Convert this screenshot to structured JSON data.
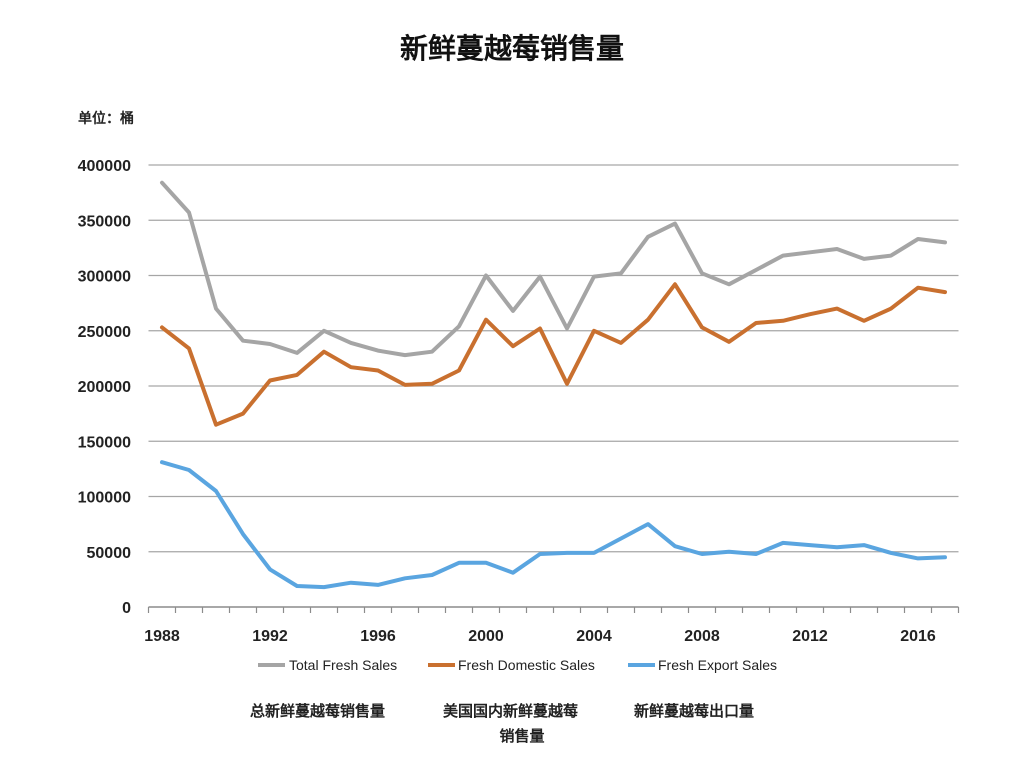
{
  "chart_data": {
    "type": "line",
    "title": "新鲜蔓越莓销售量",
    "ylabel": "单位：桶",
    "x": [
      1988,
      1989,
      1990,
      1991,
      1992,
      1993,
      1994,
      1995,
      1996,
      1997,
      1998,
      1999,
      2000,
      2001,
      2002,
      2003,
      2004,
      2005,
      2006,
      2007,
      2008,
      2009,
      2010,
      2011,
      2012,
      2013,
      2014,
      2015,
      2016,
      2017
    ],
    "xlim": [
      1988,
      2017
    ],
    "x_ticks": [
      1988,
      1992,
      1996,
      2000,
      2004,
      2008,
      2012,
      2016
    ],
    "ylim": [
      0,
      400000
    ],
    "y_ticks": [
      0,
      50000,
      100000,
      150000,
      200000,
      250000,
      300000,
      350000,
      400000
    ],
    "grid": true,
    "legend": "bottom",
    "series": [
      {
        "name": "Total Fresh Sales",
        "color": "#a5a5a5",
        "values": [
          384000,
          357000,
          270000,
          241000,
          238000,
          230000,
          250000,
          239000,
          232000,
          228000,
          231000,
          254000,
          300000,
          268000,
          299000,
          252000,
          299000,
          302000,
          335000,
          347000,
          302000,
          292000,
          305000,
          318000,
          321000,
          324000,
          315000,
          318000,
          333000,
          330000
        ]
      },
      {
        "name": "Fresh Domestic Sales",
        "color": "#c9702f",
        "values": [
          253000,
          234000,
          165000,
          175000,
          205000,
          210000,
          231000,
          217000,
          214000,
          201000,
          202000,
          214000,
          260000,
          236000,
          252000,
          202000,
          250000,
          239000,
          260000,
          292000,
          253000,
          240000,
          257000,
          259000,
          265000,
          270000,
          259000,
          270000,
          289000,
          285000
        ]
      },
      {
        "name": "Fresh Export Sales",
        "color": "#5aa5e0",
        "values": [
          131000,
          124000,
          105000,
          66000,
          34000,
          19000,
          18000,
          22000,
          20000,
          26000,
          29000,
          40000,
          40000,
          31000,
          48000,
          49000,
          49000,
          62000,
          75000,
          55000,
          48000,
          50000,
          48000,
          58000,
          56000,
          54000,
          56000,
          49000,
          44000,
          45000
        ]
      }
    ]
  },
  "captions": [
    {
      "lines": [
        "总新鲜蔓越莓销售量"
      ]
    },
    {
      "lines": [
        "美国国内新鲜蔓越莓",
        "销售量"
      ]
    },
    {
      "lines": [
        "新鲜蔓越莓出口量"
      ]
    }
  ]
}
